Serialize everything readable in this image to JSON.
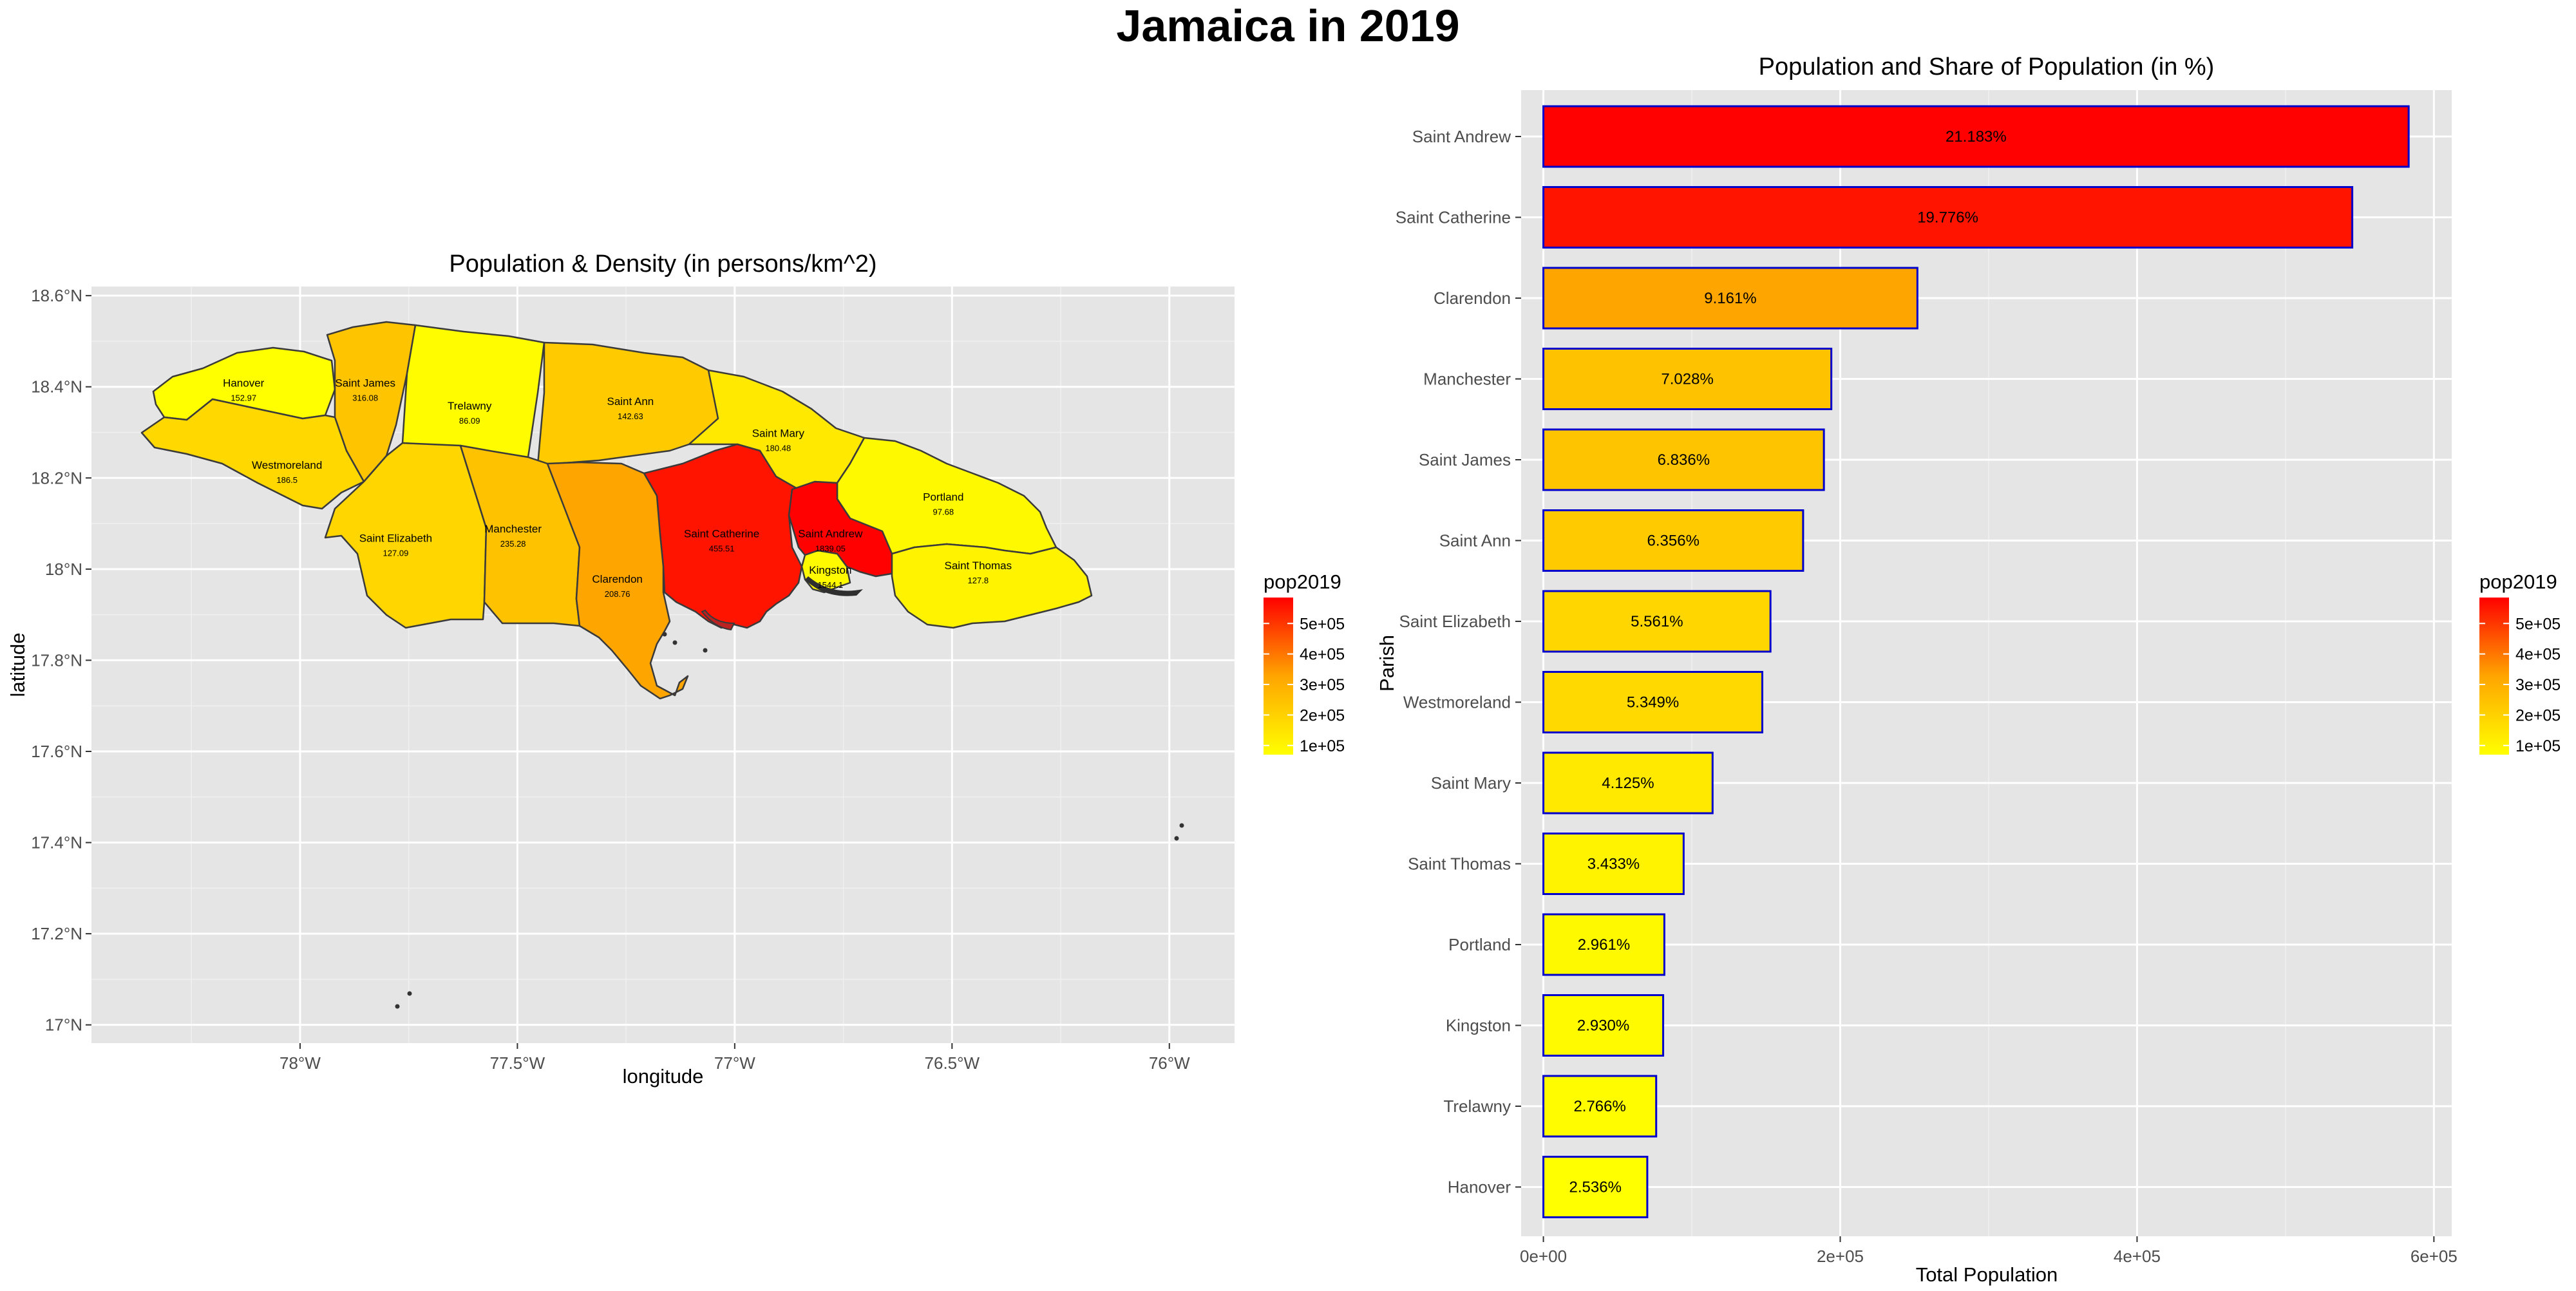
{
  "figure": {
    "title": "Jamaica in 2019"
  },
  "colors": {
    "panel_bg": "#e5e5e5",
    "grid_major": "#ffffff",
    "low": "#ffff00",
    "high": "#ff0000",
    "bar_outline": "#0000cd",
    "border": "#3a3a3a"
  },
  "chart_data": [
    {
      "type": "map",
      "title": "Population & Density (in persons/km^2)",
      "xlabel": "longitude",
      "ylabel": "latitude",
      "xlim": [
        -78.48,
        -75.85
      ],
      "ylim": [
        16.96,
        18.62
      ],
      "x_ticks": [
        {
          "value": -78.0,
          "label": "78°W"
        },
        {
          "value": -77.5,
          "label": "77.5°W"
        },
        {
          "value": -77.0,
          "label": "77°W"
        },
        {
          "value": -76.5,
          "label": "76.5°W"
        },
        {
          "value": -76.0,
          "label": "76°W"
        }
      ],
      "y_ticks": [
        {
          "value": 17.0,
          "label": "17°N"
        },
        {
          "value": 17.2,
          "label": "17.2°N"
        },
        {
          "value": 17.4,
          "label": "17.4°N"
        },
        {
          "value": 17.6,
          "label": "17.6°N"
        },
        {
          "value": 17.8,
          "label": "17.8°N"
        },
        {
          "value": 18.0,
          "label": "18°N"
        },
        {
          "value": 18.2,
          "label": "18.2°N"
        },
        {
          "value": 18.4,
          "label": "18.4°N"
        },
        {
          "value": 18.6,
          "label": "18.6°N"
        }
      ],
      "legend": {
        "title": "pop2019",
        "position": "right",
        "min": 70000,
        "max": 585000,
        "breaks": [
          {
            "value": 100000,
            "label": "1e+05"
          },
          {
            "value": 200000,
            "label": "2e+05"
          },
          {
            "value": 300000,
            "label": "3e+05"
          },
          {
            "value": 400000,
            "label": "4e+05"
          },
          {
            "value": 500000,
            "label": "5e+05"
          }
        ]
      },
      "regions": [
        {
          "name": "Hanover",
          "density": "152.97",
          "pop2019": 70000,
          "lon": -78.13,
          "lat": 18.4
        },
        {
          "name": "Saint James",
          "density": "316.08",
          "pop2019": 189000,
          "lon": -77.85,
          "lat": 18.4
        },
        {
          "name": "Trelawny",
          "density": "86.09",
          "pop2019": 76000,
          "lon": -77.61,
          "lat": 18.35
        },
        {
          "name": "Saint Ann",
          "density": "142.63",
          "pop2019": 175000,
          "lon": -77.24,
          "lat": 18.36
        },
        {
          "name": "Saint Mary",
          "density": "180.48",
          "pop2019": 114000,
          "lon": -76.9,
          "lat": 18.29
        },
        {
          "name": "Westmoreland",
          "density": "186.5",
          "pop2019": 148000,
          "lon": -78.03,
          "lat": 18.22
        },
        {
          "name": "Portland",
          "density": "97.68",
          "pop2019": 82000,
          "lon": -76.52,
          "lat": 18.15
        },
        {
          "name": "Saint Elizabeth",
          "density": "127.09",
          "pop2019": 153000,
          "lon": -77.78,
          "lat": 18.06
        },
        {
          "name": "Manchester",
          "density": "235.28",
          "pop2019": 194000,
          "lon": -77.51,
          "lat": 18.08
        },
        {
          "name": "Saint Catherine",
          "density": "455.51",
          "pop2019": 545000,
          "lon": -77.03,
          "lat": 18.07
        },
        {
          "name": "Saint Andrew",
          "density": "1839.05",
          "pop2019": 583000,
          "lon": -76.78,
          "lat": 18.07
        },
        {
          "name": "Clarendon",
          "density": "208.76",
          "pop2019": 252000,
          "lon": -77.27,
          "lat": 17.97
        },
        {
          "name": "Kingston",
          "density": "1544.1",
          "pop2019": 80700,
          "lon": -76.78,
          "lat": 17.99
        },
        {
          "name": "Saint Thomas",
          "density": "127.8",
          "pop2019": 94500,
          "lon": -76.44,
          "lat": 18.0
        }
      ]
    },
    {
      "type": "bar",
      "orientation": "horizontal",
      "title": "Population and Share of Population (in %)",
      "xlabel": "Total Population",
      "ylabel": "Parish",
      "xlim": [
        -15000,
        612000
      ],
      "x_ticks": [
        {
          "value": 0,
          "label": "0e+00"
        },
        {
          "value": 200000,
          "label": "2e+05"
        },
        {
          "value": 400000,
          "label": "4e+05"
        },
        {
          "value": 600000,
          "label": "6e+05"
        }
      ],
      "legend": {
        "title": "pop2019",
        "position": "right",
        "min": 70000,
        "max": 585000,
        "breaks": [
          {
            "value": 100000,
            "label": "1e+05"
          },
          {
            "value": 200000,
            "label": "2e+05"
          },
          {
            "value": 300000,
            "label": "3e+05"
          },
          {
            "value": 400000,
            "label": "4e+05"
          },
          {
            "value": 500000,
            "label": "5e+05"
          }
        ]
      },
      "categories": [
        "Saint Andrew",
        "Saint Catherine",
        "Clarendon",
        "Manchester",
        "Saint James",
        "Saint Ann",
        "Saint Elizabeth",
        "Westmoreland",
        "Saint Mary",
        "Saint Thomas",
        "Portland",
        "Kingston",
        "Trelawny",
        "Hanover"
      ],
      "values": [
        583000,
        545000,
        252000,
        194000,
        189000,
        175000,
        153000,
        147500,
        114000,
        94500,
        81500,
        80700,
        76000,
        70000
      ],
      "labels": [
        "21.183%",
        "19.776%",
        "9.161%",
        "7.028%",
        "6.836%",
        "6.356%",
        "5.561%",
        "5.349%",
        "4.125%",
        "3.433%",
        "2.961%",
        "2.930%",
        "2.766%",
        "2.536%"
      ]
    }
  ]
}
